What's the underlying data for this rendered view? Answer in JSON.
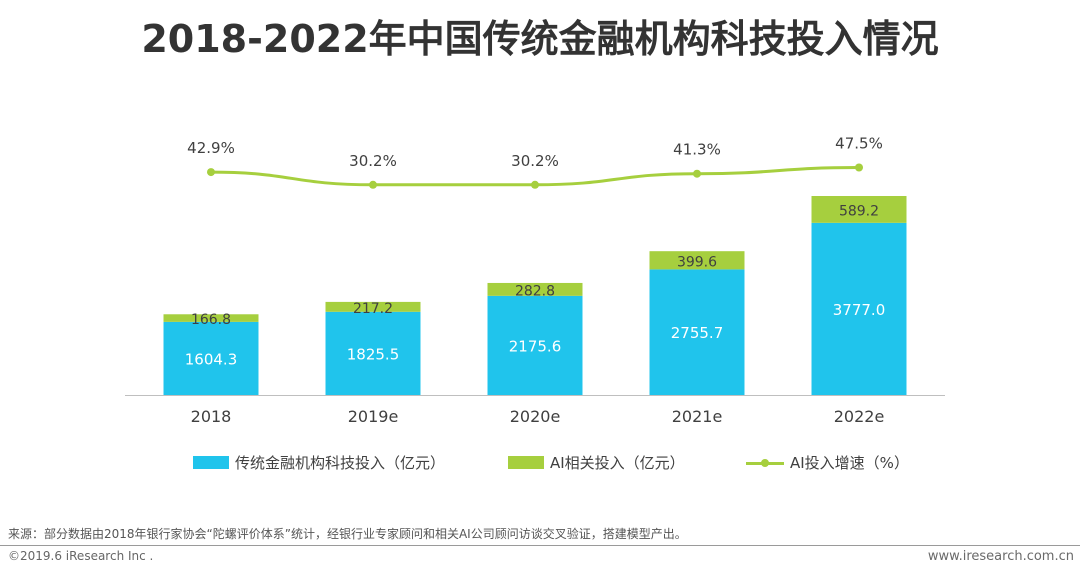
{
  "title": "2018-2022年中国传统金融机构科技投入情况",
  "chart_data": {
    "type": "bar",
    "stacked": true,
    "categories": [
      "2018",
      "2019e",
      "2020e",
      "2021e",
      "2022e"
    ],
    "series": [
      {
        "name": "传统金融机构科技投入（亿元）",
        "values": [
          1604.3,
          1825.5,
          2175.6,
          2755.7,
          3777.0
        ],
        "labels": [
          "1604.3",
          "1825.5",
          "2175.6",
          "2755.7",
          "3777.0"
        ],
        "color": "#20c4ec"
      },
      {
        "name": "AI相关投入（亿元）",
        "values": [
          166.8,
          217.2,
          282.8,
          399.6,
          589.2
        ],
        "labels": [
          "166.8",
          "217.2",
          "282.8",
          "399.6",
          "589.2"
        ],
        "color": "#a6cf3e"
      }
    ],
    "line_series": {
      "name": "AI投入增速（%）",
      "values": [
        42.9,
        30.2,
        30.2,
        41.3,
        47.5
      ],
      "labels": [
        "42.9%",
        "30.2%",
        "30.2%",
        "41.3%",
        "47.5%"
      ],
      "color": "#a6cf3e"
    },
    "legend_position": "bottom",
    "grid": false
  },
  "source": "来源：部分数据由2018年银行家协会“陀螺评价体系”统计，经银行业专家顾问和相关AI公司顾问访谈交叉验证，搭建模型产出。",
  "copyright": "©2019.6 iResearch Inc .",
  "website": "www.iresearch.com.cn"
}
